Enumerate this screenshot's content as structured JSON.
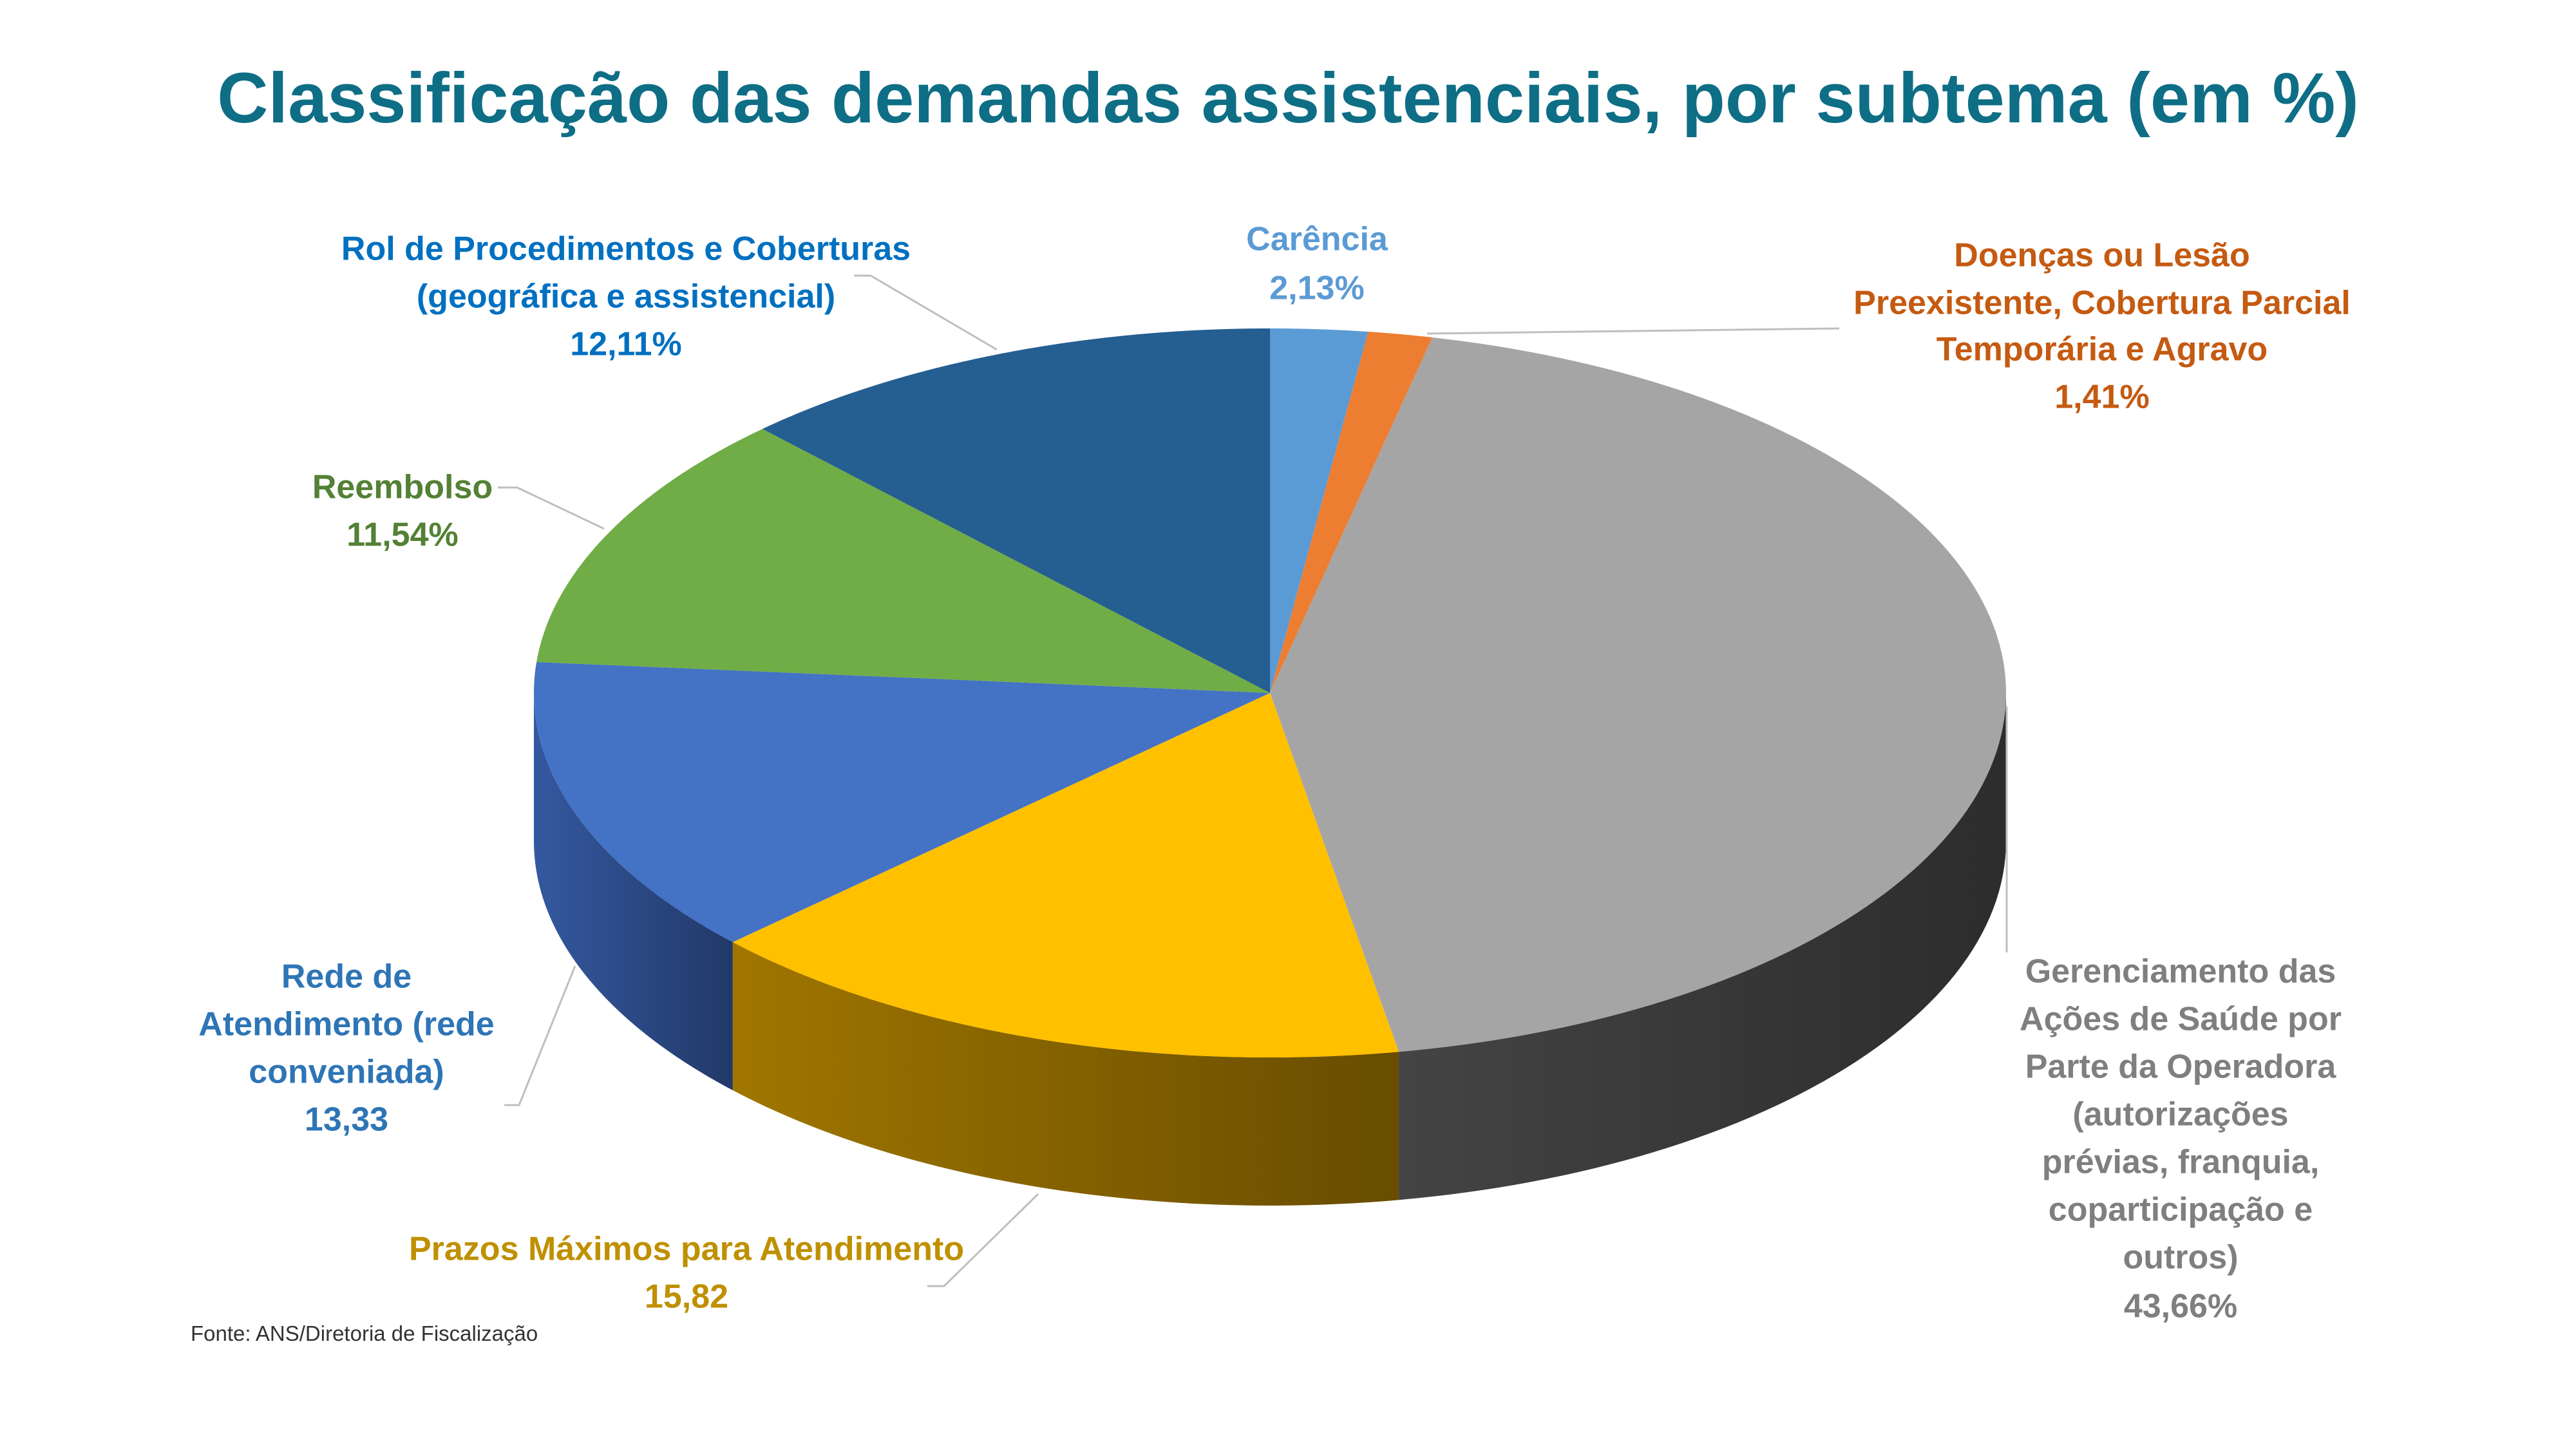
{
  "chart_data": {
    "type": "pie",
    "style": "3d",
    "title": "Classificação das demandas assistenciais, por subtema (em %)",
    "title_color": "#0e6e85",
    "source": "Fonte: ANS/Diretoria de Fiscalização",
    "slices": [
      {
        "label_lines": [
          "Carência"
        ],
        "value_label": "2,13%",
        "value": 2.13,
        "color": "#5b9bd5",
        "side_color": "#3f75a8",
        "label_color": "#5b9bd5"
      },
      {
        "label_lines": [
          "Doenças ou Lesão",
          "Preexistente, Cobertura Parcial",
          "Temporária e Agravo"
        ],
        "value_label": "1,41%",
        "value": 1.41,
        "color": "#ed7d31",
        "side_color": "#b35c1f",
        "label_color": "#c55a11"
      },
      {
        "label_lines": [
          "Gerenciamento das",
          "Ações de Saúde por",
          "Parte da Operadora",
          "(autorizações",
          "prévias, franquia,",
          "coparticipação e",
          "outros)"
        ],
        "value_label": "43,66%",
        "value": 43.66,
        "color": "#a5a5a5",
        "side_color": "#444444",
        "label_color": "#7f7f7f"
      },
      {
        "label_lines": [
          "Prazos Máximos para Atendimento"
        ],
        "value_label": "15,82",
        "value": 15.82,
        "color": "#ffc000",
        "side_color": "#a07600",
        "label_color": "#bf9000"
      },
      {
        "label_lines": [
          "Rede de",
          "Atendimento (rede",
          "conveniada)"
        ],
        "value_label": "13,33",
        "value": 13.33,
        "color": "#4472c4",
        "side_color": "#3458a0",
        "label_color": "#2e75b6"
      },
      {
        "label_lines": [
          "Reembolso"
        ],
        "value_label": "11,54%",
        "value": 11.54,
        "color": "#70ad47",
        "side_color": "#507d32",
        "label_color": "#538135"
      },
      {
        "label_lines": [
          "Rol de Procedimentos e Coberturas",
          "(geográfica e assistencial)"
        ],
        "value_label": "12,11%",
        "value": 12.11,
        "color": "#255e91",
        "side_color": "#1a4268",
        "label_color": "#0070c0"
      }
    ]
  }
}
